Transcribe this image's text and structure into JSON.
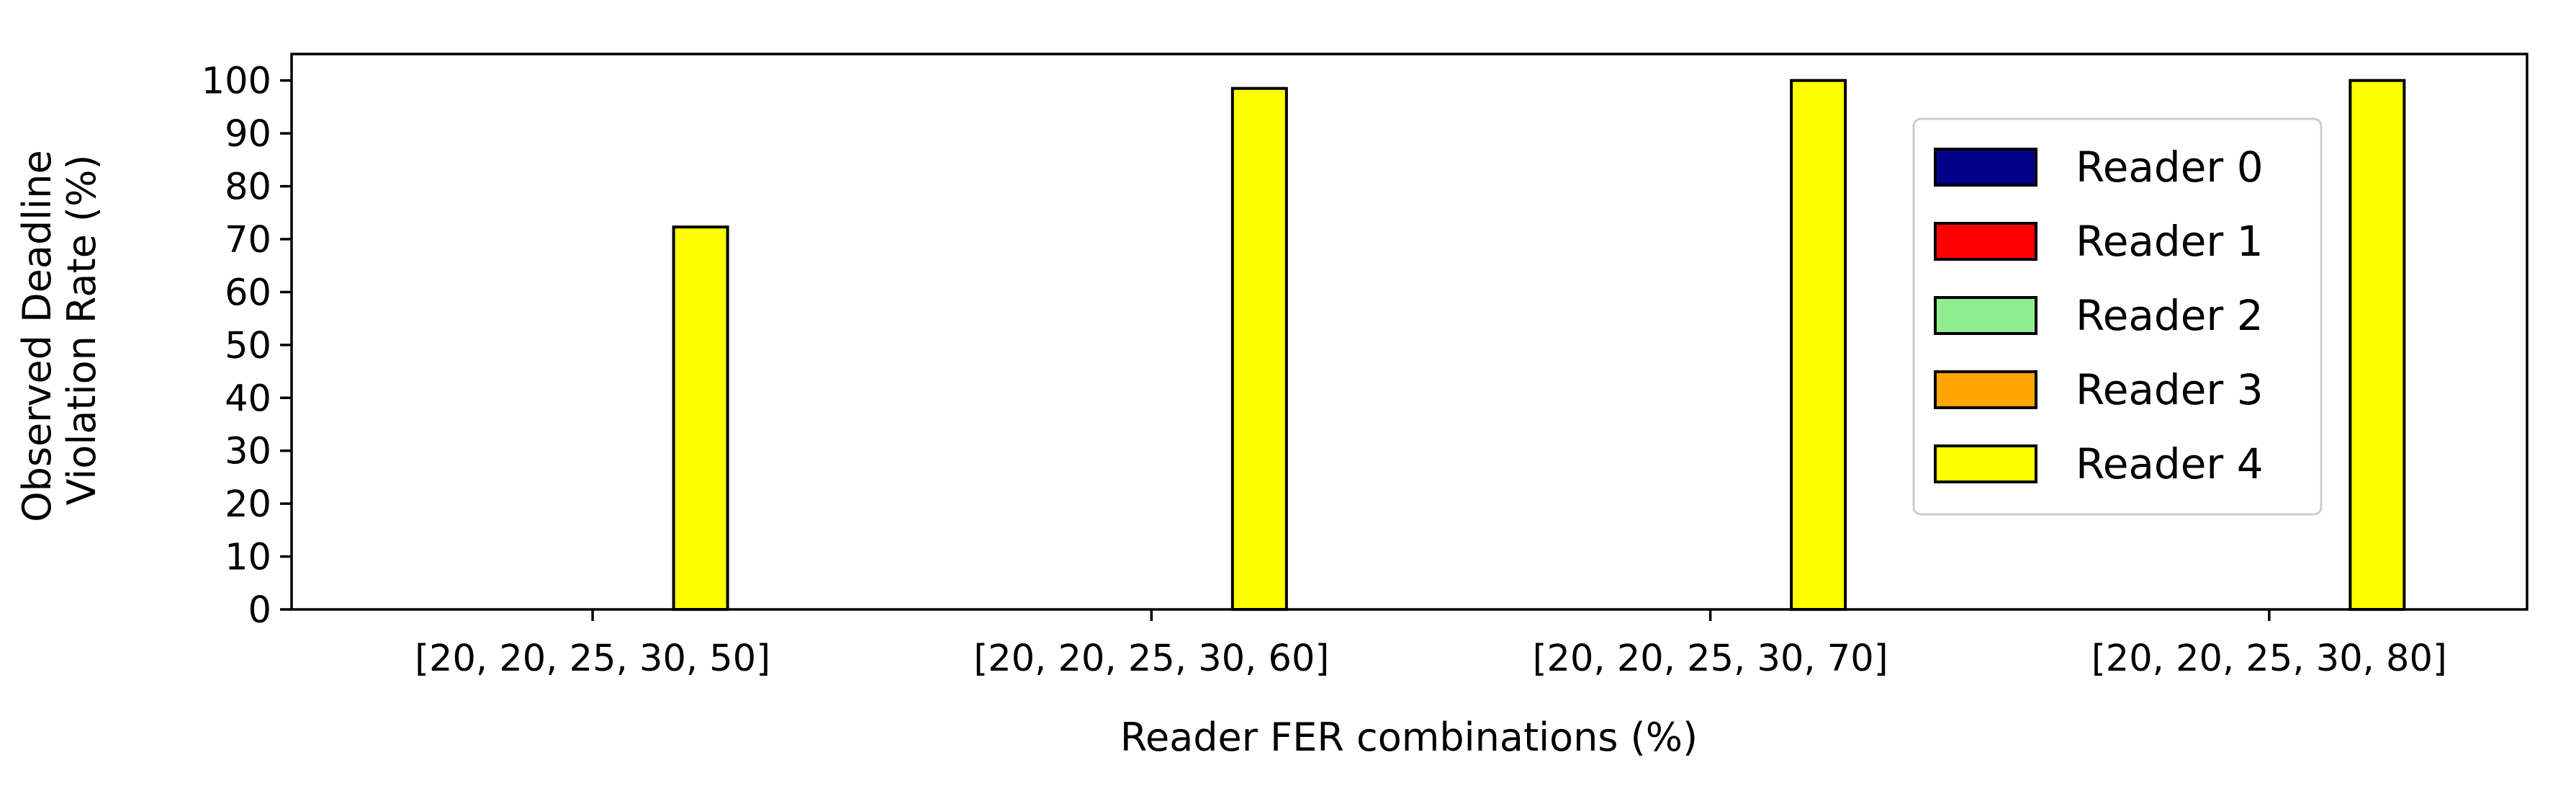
{
  "chart_data": {
    "type": "bar",
    "title": "",
    "xlabel": "Reader FER combinations (%)",
    "ylabel_lines": [
      "Observed Deadline",
      "Violation Rate (%)"
    ],
    "categories": [
      "[20, 20, 25, 30, 50]",
      "[20, 20, 25, 30, 60]",
      "[20, 20, 25, 30, 70]",
      "[20, 20, 25, 30, 80]"
    ],
    "ylim": [
      0,
      105
    ],
    "yticks": [
      0,
      10,
      20,
      30,
      40,
      50,
      60,
      70,
      80,
      90,
      100
    ],
    "series": [
      {
        "name": "Reader 0",
        "color": "#00008b",
        "values": [
          0,
          0,
          0,
          0
        ]
      },
      {
        "name": "Reader 1",
        "color": "#ff0000",
        "values": [
          0,
          0,
          0,
          0
        ]
      },
      {
        "name": "Reader 2",
        "color": "#90ee90",
        "values": [
          0,
          0,
          0,
          0
        ]
      },
      {
        "name": "Reader 3",
        "color": "#ffa500",
        "values": [
          0,
          0,
          0,
          0
        ]
      },
      {
        "name": "Reader 4",
        "color": "#ffff00",
        "values": [
          72.3,
          98.5,
          100,
          100
        ]
      }
    ],
    "legend_position": "right",
    "grid": false
  }
}
